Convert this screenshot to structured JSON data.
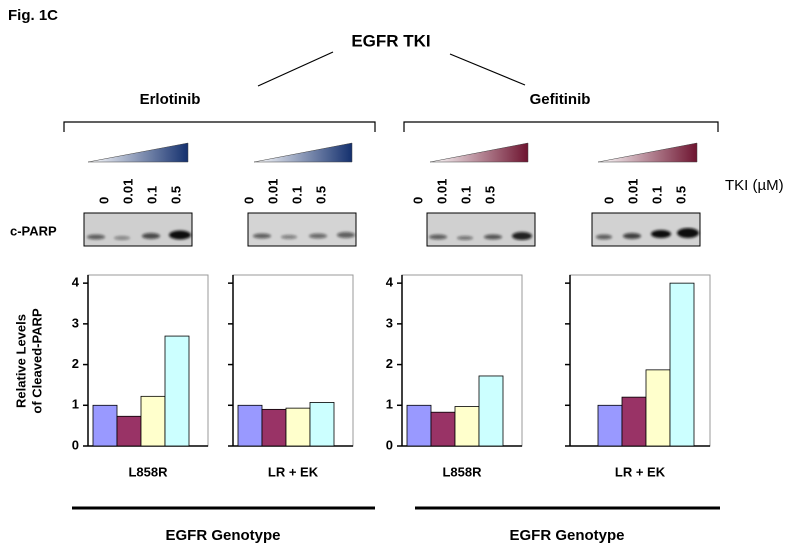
{
  "figure_label": "Fig. 1C",
  "heading": "EGFR TKI",
  "drugs": [
    "Erlotinib",
    "Gefitinib"
  ],
  "blot_label": "c-PARP",
  "dose_unit_label": "TKI (µM)",
  "group_labels": [
    "EGFR Genotype",
    "EGFR Genotype"
  ],
  "chart_data": [
    {
      "type": "bar",
      "ylabel": [
        "Relative Levels",
        "of Cleaved-PARP"
      ],
      "xlabel": "L858R",
      "categories": [
        "0",
        "0.01",
        "0.1",
        "0.5"
      ],
      "values": [
        1.0,
        0.73,
        1.22,
        2.7
      ],
      "colors": [
        "#9999ff",
        "#993366",
        "#ffffcc",
        "#ccffff"
      ],
      "ylim": [
        0,
        4.2
      ],
      "yticks": [
        0,
        1,
        2,
        3,
        4
      ]
    },
    {
      "type": "bar",
      "xlabel": "LR + EK",
      "categories": [
        "0",
        "0.01",
        "0.1",
        "0.5"
      ],
      "values": [
        1.0,
        0.9,
        0.93,
        1.07
      ],
      "colors": [
        "#9999ff",
        "#993366",
        "#ffffcc",
        "#ccffff"
      ],
      "ylim": [
        0,
        4.2
      ],
      "yticks": [
        0,
        1,
        2,
        3,
        4
      ]
    },
    {
      "type": "bar",
      "xlabel": "L858R",
      "categories": [
        "0",
        "0.01",
        "0.1",
        "0.5"
      ],
      "values": [
        1.0,
        0.83,
        0.97,
        1.72
      ],
      "colors": [
        "#9999ff",
        "#993366",
        "#ffffcc",
        "#ccffff"
      ],
      "ylim": [
        0,
        4.2
      ],
      "yticks": [
        0,
        1,
        2,
        3,
        4
      ]
    },
    {
      "type": "bar",
      "xlabel": "LR + EK",
      "categories": [
        "0",
        "0.01",
        "0.1",
        "0.5"
      ],
      "values": [
        1.0,
        1.2,
        1.87,
        4.0
      ],
      "colors": [
        "#9999ff",
        "#993366",
        "#ffffcc",
        "#ccffff"
      ],
      "ylim": [
        0,
        4.2
      ],
      "yticks": [
        0,
        1,
        2,
        3,
        4
      ]
    }
  ]
}
